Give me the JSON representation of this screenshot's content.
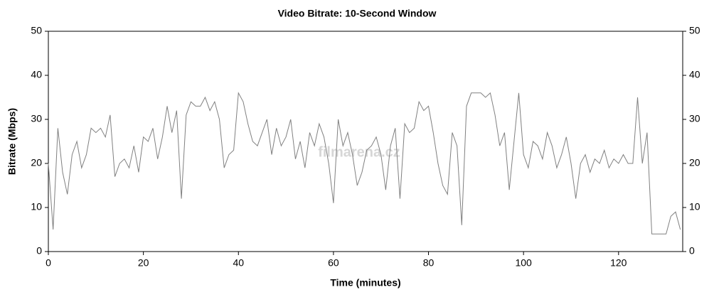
{
  "chart_data": {
    "type": "line",
    "title": "Video Bitrate: 10-Second Window",
    "x_label": "Time (minutes)",
    "y_label": "Bitrate (Mbps)",
    "watermark": "filmarena.cz",
    "x": [
      0,
      1,
      2,
      3,
      4,
      5,
      6,
      7,
      8,
      9,
      10,
      11,
      12,
      13,
      14,
      15,
      16,
      17,
      18,
      19,
      20,
      21,
      22,
      23,
      24,
      25,
      26,
      27,
      28,
      29,
      30,
      31,
      32,
      33,
      34,
      35,
      36,
      37,
      38,
      39,
      40,
      41,
      42,
      43,
      44,
      45,
      46,
      47,
      48,
      49,
      50,
      51,
      52,
      53,
      54,
      55,
      56,
      57,
      58,
      59,
      60,
      61,
      62,
      63,
      64,
      65,
      66,
      67,
      68,
      69,
      70,
      71,
      72,
      73,
      74,
      75,
      76,
      77,
      78,
      79,
      80,
      81,
      82,
      83,
      84,
      85,
      86,
      87,
      88,
      89,
      90,
      91,
      92,
      93,
      94,
      95,
      96,
      97,
      98,
      99,
      100,
      101,
      102,
      103,
      104,
      105,
      106,
      107,
      108,
      109,
      110,
      111,
      112,
      113,
      114,
      115,
      116,
      117,
      118,
      119,
      120,
      121,
      122,
      123,
      124,
      125,
      126,
      127,
      128,
      129,
      130,
      131,
      132,
      133
    ],
    "series": [
      {
        "name": "Video Bitrate",
        "color": "#808080",
        "values": [
          20,
          5,
          28,
          18,
          13,
          22,
          25,
          19,
          22,
          28,
          27,
          28,
          26,
          31,
          17,
          20,
          21,
          19,
          24,
          18,
          26,
          25,
          28,
          21,
          26,
          33,
          27,
          32,
          12,
          31,
          34,
          33,
          33,
          35,
          32,
          34,
          30,
          19,
          22,
          23,
          36,
          34,
          29,
          25,
          24,
          27,
          30,
          22,
          28,
          24,
          26,
          30,
          21,
          25,
          19,
          27,
          24,
          29,
          26,
          20,
          11,
          30,
          24,
          27,
          22,
          15,
          18,
          23,
          24,
          26,
          22,
          14,
          24,
          28,
          12,
          29,
          27,
          28,
          34,
          32,
          33,
          27,
          20,
          15,
          13,
          27,
          24,
          6,
          33,
          36,
          36,
          36,
          35,
          36,
          31,
          24,
          27,
          14,
          25,
          36,
          22,
          19,
          25,
          24,
          21,
          27,
          24,
          19,
          22,
          26,
          20,
          12,
          20,
          22,
          18,
          21,
          20,
          23,
          19,
          21,
          20,
          22,
          20,
          20,
          35,
          20,
          27,
          4,
          4,
          4,
          4,
          8,
          9,
          5
        ]
      }
    ],
    "xlim": [
      0,
      133.5
    ],
    "xticks": [
      0,
      20,
      40,
      60,
      80,
      100,
      120
    ],
    "ylim": [
      0,
      50
    ],
    "yticks": [
      0,
      10,
      20,
      30,
      40,
      50
    ],
    "y2lim": [
      0,
      50
    ],
    "y2ticks": [
      0,
      10,
      20,
      30,
      40,
      50
    ]
  }
}
